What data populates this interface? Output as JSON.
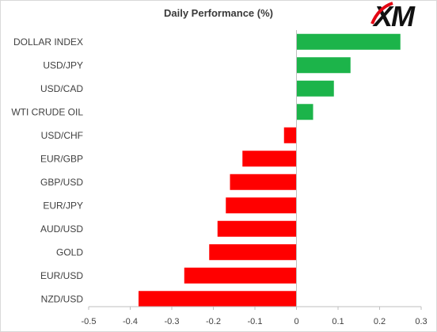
{
  "chart_data": {
    "type": "bar",
    "orientation": "horizontal",
    "title": "Daily Performance  (%)",
    "xlabel": "",
    "ylabel": "",
    "categories": [
      "DOLLAR INDEX",
      "USD/JPY",
      "USD/CAD",
      "WTI CRUDE OIL",
      "USD/CHF",
      "EUR/GBP",
      "GBP/USD",
      "EUR/JPY",
      "AUD/USD",
      "GOLD",
      "EUR/USD",
      "NZD/USD"
    ],
    "values": [
      0.25,
      0.13,
      0.09,
      0.04,
      -0.03,
      -0.13,
      -0.16,
      -0.17,
      -0.19,
      -0.21,
      -0.27,
      -0.38
    ],
    "xlim": [
      -0.5,
      0.3
    ],
    "xticks": [
      -0.5,
      -0.4,
      -0.3,
      -0.2,
      -0.1,
      0,
      0.1,
      0.2,
      0.3
    ],
    "xtick_labels": [
      "-0.5",
      "-0.4",
      "-0.3",
      "-0.2",
      "-0.1",
      "0",
      "0.1",
      "0.2",
      "0.3"
    ],
    "grid": false,
    "legend": "none",
    "colors": {
      "positive": "#1cb44a",
      "negative": "#ff0000",
      "axis": "#bfbfbf"
    }
  },
  "logo": {
    "text": "XM"
  }
}
